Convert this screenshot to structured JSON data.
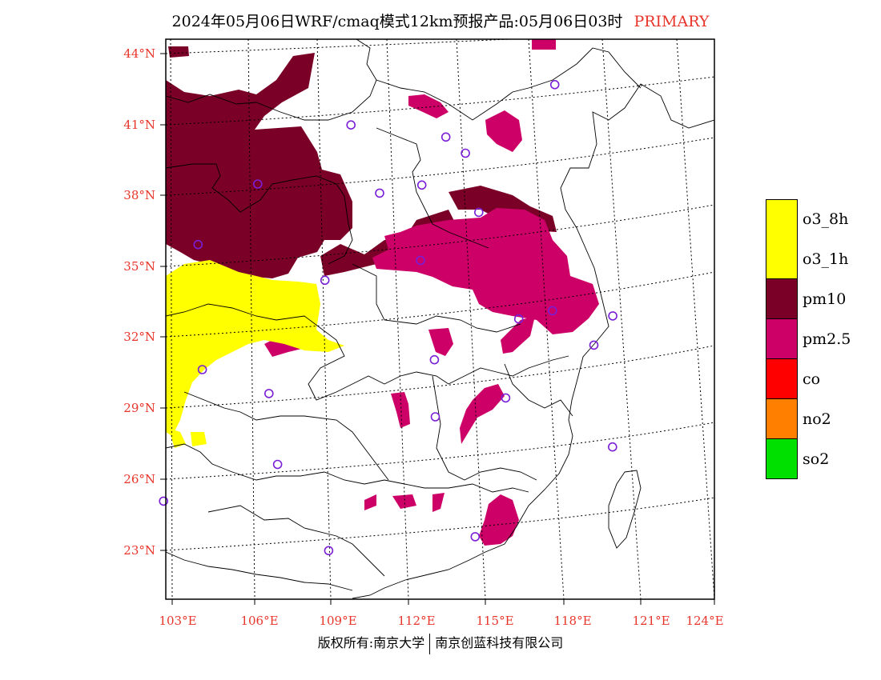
{
  "title": {
    "main": "2024年05月06日WRF/cmaq模式12km预报产品:05月06日03时",
    "tag": "PRIMARY"
  },
  "axes": {
    "lat_labels": [
      "44°N",
      "41°N",
      "38°N",
      "35°N",
      "32°N",
      "29°N",
      "26°N",
      "23°N"
    ],
    "lon_labels": [
      "103°E",
      "106°E",
      "109°E",
      "112°E",
      "115°E",
      "118°E",
      "121°E",
      "124°E"
    ]
  },
  "legend": [
    {
      "label": "o3_8h",
      "color": "#ffff00"
    },
    {
      "label": "o3_1h",
      "color": "#ffff00"
    },
    {
      "label": "pm10",
      "color": "#7a0028"
    },
    {
      "label": "pm2.5",
      "color": "#cc0066"
    },
    {
      "label": "co",
      "color": "#ff0000"
    },
    {
      "label": "no2",
      "color": "#ff8000"
    },
    {
      "label": "so2",
      "color": "#00e000"
    }
  ],
  "map_data": {
    "extent": {
      "lon": [
        103,
        124
      ],
      "lat": [
        21.5,
        44.5
      ]
    },
    "stations": [
      {
        "lon": 118.9,
        "lat": 42.3
      },
      {
        "lon": 110.3,
        "lat": 40.8
      },
      {
        "lon": 114.1,
        "lat": 40.2
      },
      {
        "lon": 114.8,
        "lat": 39.5
      },
      {
        "lon": 106.4,
        "lat": 38.4
      },
      {
        "lon": 111.2,
        "lat": 37.9
      },
      {
        "lon": 112.9,
        "lat": 38.2
      },
      {
        "lon": 115.0,
        "lat": 37.0
      },
      {
        "lon": 104.0,
        "lat": 35.9
      },
      {
        "lon": 112.5,
        "lat": 34.9
      },
      {
        "lon": 108.8,
        "lat": 34.2
      },
      {
        "lon": 117.2,
        "lat": 32.6
      },
      {
        "lon": 115.9,
        "lat": 32.3
      },
      {
        "lon": 119.4,
        "lat": 32.3
      },
      {
        "lon": 112.6,
        "lat": 30.7
      },
      {
        "lon": 118.5,
        "lat": 31.1
      },
      {
        "lon": 104.1,
        "lat": 30.6
      },
      {
        "lon": 106.5,
        "lat": 29.5
      },
      {
        "lon": 115.0,
        "lat": 29.0
      },
      {
        "lon": 112.4,
        "lat": 28.3
      },
      {
        "lon": 118.5,
        "lat": 26.8
      },
      {
        "lon": 106.7,
        "lat": 26.5
      },
      {
        "lon": 102.7,
        "lat": 25.1
      },
      {
        "lon": 108.3,
        "lat": 22.8
      },
      {
        "lon": 113.3,
        "lat": 23.2
      }
    ]
  },
  "footer": {
    "left": "版权所有:南京大学",
    "right": "南京创蓝科技有限公司"
  }
}
